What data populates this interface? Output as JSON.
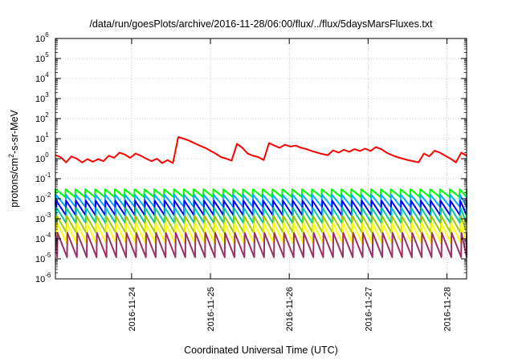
{
  "chart_data": {
    "type": "line",
    "title": "/data/run/goesPlots/archive/2016-11-28/06:00/flux/../flux/5daysMarsFluxes.txt",
    "xlabel": "Coordinated Universal Time (UTC)",
    "ylabel_parts": {
      "base": "protons/cm",
      "sup": "2",
      "rest": "-s-sr-MeV"
    },
    "yscale": "log",
    "ylim": [
      1e-06,
      1000000.0
    ],
    "x_range": [
      "2016-11-23T00:48",
      "2016-11-28T06:00"
    ],
    "grid": true,
    "y_ticks": [
      {
        "base": "10",
        "exp": "-6"
      },
      {
        "base": "10",
        "exp": "-5"
      },
      {
        "base": "10",
        "exp": "-4"
      },
      {
        "base": "10",
        "exp": "-3"
      },
      {
        "base": "10",
        "exp": "-2"
      },
      {
        "base": "10",
        "exp": "-1"
      },
      {
        "base": "10",
        "exp": "0"
      },
      {
        "base": "10",
        "exp": "1"
      },
      {
        "base": "10",
        "exp": "2"
      },
      {
        "base": "10",
        "exp": "3"
      },
      {
        "base": "10",
        "exp": "4"
      },
      {
        "base": "10",
        "exp": "5"
      },
      {
        "base": "10",
        "exp": "6"
      }
    ],
    "x_ticks": [
      "2016-11-24",
      "2016-11-25",
      "2016-11-26",
      "2016-11-27",
      "2016-11-28"
    ],
    "period_hours": 3,
    "series": [
      {
        "color": "#ff0000",
        "profile": [
          1.5,
          1.2,
          0.65,
          1.3,
          1.0,
          0.65,
          0.95,
          0.7,
          0.95,
          0.75,
          1.4,
          1.1,
          2.0,
          1.6,
          1.1,
          1.8,
          1.4,
          1.0,
          0.75,
          1.0,
          0.6,
          0.85,
          0.6,
          12,
          10,
          8,
          6,
          4.5,
          3.5,
          2.5,
          1.8,
          1.2,
          1.0,
          0.8,
          5.5,
          3.5,
          1.8,
          1.4,
          1.2,
          0.85,
          6.0,
          4.5,
          3.5,
          5.0,
          4.0,
          4.5,
          3.5,
          3.0,
          2.4,
          2.0,
          1.7,
          1.5,
          2.6,
          2.0,
          2.8,
          2.2,
          3.0,
          2.4,
          3.2,
          2.4,
          3.8,
          3.0,
          2.0,
          1.5,
          1.2,
          1.0,
          0.85,
          0.75,
          0.65,
          1.8,
          1.3,
          2.5,
          2.0,
          1.4,
          1.0,
          0.65,
          2.0,
          1.4
        ]
      },
      {
        "color": "#00ff00",
        "top": 0.03,
        "bottom": 0.012
      },
      {
        "color": "#00aaff",
        "top": 0.016,
        "bottom": 0.004
      },
      {
        "color": "#0000ff",
        "top": 0.008,
        "bottom": 0.0015
      },
      {
        "color": "#00c8a0",
        "top": 0.0035,
        "bottom": 0.0006
      },
      {
        "color": "#a0c800",
        "top": 0.0014,
        "bottom": 0.0002
      },
      {
        "color": "#ffff00",
        "top": 0.0006,
        "bottom": 6e-05
      },
      {
        "color": "#993366",
        "top": 0.0002,
        "bottom": 1.2e-05
      }
    ]
  }
}
